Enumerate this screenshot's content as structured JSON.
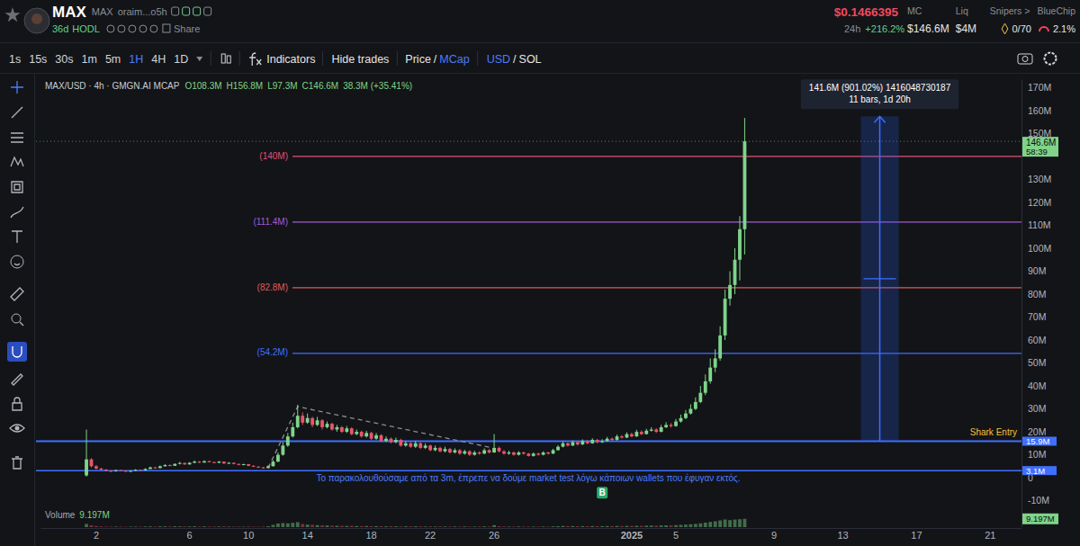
{
  "header": {
    "name": "MAX",
    "symbol": "MAX",
    "address": "oraim...o5h",
    "age": "36d",
    "tag": "HODL",
    "share": "Share",
    "price": "$0.1466395",
    "change_label": "24h",
    "change": "+216.2%",
    "mc_label": "MC",
    "mc": "$146.6M",
    "liq_label": "Liq",
    "liq": "$4M",
    "snipers_label": "Snipers >",
    "snipers": "0/70",
    "bluechip_label": "BlueChip",
    "bluechip": "2.1%"
  },
  "toolbar": {
    "intervals": [
      "1s",
      "15s",
      "30s",
      "1m",
      "5m",
      "1H",
      "4H",
      "1D"
    ],
    "active": "1H",
    "indicators": "Indicators",
    "hide_trades": "Hide trades",
    "price": "Price",
    "mcap": "MCap",
    "usd": "USD",
    "sol": "SOL",
    "separator": "/"
  },
  "chart_data": {
    "type": "candlestick",
    "title": "MAX/USD · 4h · GMGN.AI MCAP",
    "ohlc_legend": [
      "O108.3M",
      "H156.8M",
      "L97.3M",
      "C146.6M",
      "38.3M (+35.41%)"
    ],
    "up_color": "#7fd48a",
    "down_color": "#e9546b",
    "grid": false,
    "categories": [
      null,
      null,
      null,
      null,
      null,
      null,
      null,
      null,
      null,
      null,
      null,
      "2",
      null,
      null,
      null,
      null,
      null,
      null,
      null,
      null,
      null,
      null,
      null,
      null,
      null,
      null,
      null,
      null,
      null,
      null,
      "6",
      null,
      null,
      null,
      null,
      null,
      null,
      null,
      null,
      null,
      null,
      null,
      "10",
      null,
      null,
      null,
      null,
      null,
      null,
      null,
      null,
      null,
      null,
      null,
      "14",
      null,
      null,
      null,
      null,
      null,
      null,
      null,
      null,
      null,
      null,
      null,
      null,
      "18",
      null,
      null,
      null,
      null,
      null,
      null,
      null,
      null,
      null,
      null,
      null,
      "22",
      null,
      null,
      null,
      null,
      null,
      null,
      null,
      null,
      null,
      null,
      null,
      null,
      "26",
      null,
      null,
      null,
      null,
      null,
      null,
      null,
      null,
      null,
      null,
      null,
      null,
      null,
      null,
      null,
      null,
      null,
      null,
      null,
      null,
      null,
      null,
      null,
      null,
      null,
      null,
      null,
      "2025",
      null,
      null,
      null,
      null,
      null,
      null,
      null,
      null,
      "5",
      null,
      null,
      null,
      null,
      null,
      null,
      null,
      null,
      null,
      null,
      null,
      null,
      null,
      null,
      null,
      null,
      null,
      null,
      null,
      "9",
      null,
      null,
      null,
      null,
      null,
      null,
      null,
      null,
      null,
      null,
      null,
      null,
      null,
      "13",
      null,
      null,
      null,
      null,
      null,
      null,
      null,
      null,
      null,
      null,
      null,
      null,
      null,
      null,
      "17",
      null,
      null,
      null,
      null,
      null,
      null,
      null,
      null,
      null,
      null,
      null,
      null,
      null,
      null,
      "21",
      null,
      null,
      null,
      null,
      null,
      null
    ],
    "open": [
      null,
      null,
      null,
      null,
      null,
      null,
      null,
      null,
      null,
      1,
      8,
      5,
      4,
      3.5,
      3,
      2.8,
      3.2,
      3,
      2.7,
      3,
      3.4,
      3.2,
      3.8,
      4.5,
      4.2,
      5,
      5.5,
      5.2,
      6,
      6.4,
      5.8,
      6.5,
      7,
      6.6,
      7.2,
      6.8,
      6.5,
      7,
      6.2,
      6.5,
      6,
      5.6,
      5.9,
      5.2,
      4.8,
      4.5,
      4.2,
      5,
      7,
      10,
      14,
      18,
      22,
      27,
      24,
      26,
      23,
      25,
      22,
      23.5,
      21,
      22,
      20,
      21.5,
      19,
      20,
      18,
      19.5,
      17,
      18.5,
      16,
      17,
      15.5,
      16.5,
      14,
      15,
      13.5,
      15,
      13,
      14,
      12,
      13,
      11.5,
      12.5,
      11,
      12,
      10.5,
      11.5,
      10,
      11,
      10.5,
      12,
      11,
      13,
      11.5,
      10.5,
      11,
      10,
      11,
      10.5,
      9.5,
      10.5,
      10,
      11,
      10.5,
      12,
      13.5,
      15,
      14,
      15.5,
      14.5,
      16,
      15,
      16.5,
      15.5,
      16,
      17,
      16.5,
      18,
      17.5,
      19,
      18,
      20,
      19,
      20.5,
      21,
      20,
      22,
      23,
      22.5,
      24.5,
      26,
      28,
      30,
      33,
      37,
      42,
      48,
      52,
      62,
      78,
      84,
      95,
      108.3,
      null,
      null,
      null,
      null,
      null,
      null,
      null,
      null,
      null,
      null,
      null,
      null,
      null,
      null,
      null,
      null,
      null,
      null,
      null,
      null,
      null,
      null,
      null,
      null,
      null,
      null,
      null,
      null,
      null,
      null,
      null,
      null,
      null,
      null,
      null,
      null,
      null,
      null,
      null,
      null,
      null,
      null,
      null,
      null,
      null,
      null,
      null,
      null,
      null,
      null,
      null,
      null,
      null,
      null,
      null,
      null
    ],
    "high": [
      null,
      null,
      null,
      null,
      null,
      null,
      null,
      null,
      null,
      21,
      8.5,
      5.5,
      4.3,
      3.8,
      3.3,
      3.6,
      3.5,
      3.2,
      3.3,
      3.7,
      3.6,
      4.1,
      4.8,
      4.7,
      5.3,
      5.9,
      5.8,
      6.3,
      6.9,
      6.6,
      6.8,
      7.5,
      7.2,
      7.6,
      7.4,
      7,
      7.3,
      7.1,
      6.8,
      6.7,
      6.2,
      6.1,
      6,
      5.4,
      5,
      4.7,
      5.4,
      7.6,
      11,
      15.5,
      19.5,
      24,
      31.8,
      28.5,
      28,
      26.5,
      26.5,
      25.5,
      24.5,
      24,
      23,
      22.5,
      22.5,
      22,
      21,
      20.5,
      20.5,
      20,
      19.5,
      19,
      18,
      17.5,
      17.5,
      17,
      16,
      15.5,
      16,
      15.5,
      15,
      14.5,
      14,
      13.5,
      13.5,
      13,
      12.8,
      12.5,
      12.2,
      12,
      11.8,
      11.5,
      12.8,
      12.5,
      19,
      13.5,
      12,
      11.8,
      11.5,
      11.6,
      11.4,
      10.8,
      11,
      10.9,
      11.5,
      11.3,
      12.6,
      14.2,
      15.8,
      15.4,
      16.2,
      15.9,
      16.7,
      16.4,
      17.2,
      16.9,
      16.8,
      17.8,
      17.5,
      18.8,
      18.6,
      19.8,
      19.6,
      20.9,
      20.6,
      21.3,
      22,
      21.6,
      23,
      24.2,
      23.8,
      25.6,
      27.5,
      29.5,
      32,
      35,
      40,
      45,
      52,
      56,
      66,
      82,
      90,
      100,
      114,
      156.8,
      null,
      null,
      null,
      null,
      null,
      null,
      null,
      null,
      null,
      null,
      null,
      null,
      null,
      null,
      null,
      null,
      null,
      null,
      null,
      null,
      null,
      null,
      null,
      null,
      null,
      null,
      null,
      null,
      null,
      null,
      null,
      null,
      null,
      null,
      null,
      null,
      null,
      null,
      null,
      null,
      null,
      null,
      null,
      null,
      null,
      null,
      null,
      null,
      null,
      null,
      null,
      null,
      null,
      null,
      null,
      null
    ],
    "low": [
      null,
      null,
      null,
      null,
      null,
      null,
      null,
      null,
      null,
      0.5,
      4.5,
      3.6,
      3.1,
      2.7,
      2.5,
      2.6,
      2.8,
      2.5,
      2.5,
      2.9,
      3,
      3.1,
      3.7,
      4,
      4.1,
      4.8,
      5,
      5.1,
      5.8,
      5.6,
      5.7,
      6.3,
      6.4,
      6.5,
      6.6,
      6.3,
      6.3,
      6,
      6,
      5.8,
      5.4,
      5.4,
      5,
      4.6,
      4.3,
      4,
      4.1,
      4.9,
      6.8,
      9.6,
      13.5,
      17.5,
      21.5,
      23,
      23.5,
      22,
      22.5,
      21,
      21.5,
      20.5,
      20,
      19.5,
      19.5,
      18.5,
      18.5,
      17.5,
      17.5,
      16.5,
      16.5,
      15.5,
      15.5,
      15,
      15,
      13.5,
      13.5,
      13,
      13,
      12.5,
      12.5,
      11.5,
      11.5,
      11,
      11,
      10.5,
      10.5,
      10,
      10,
      9.5,
      9.6,
      10,
      10.2,
      10.5,
      10.8,
      11,
      10,
      10,
      9.6,
      9.7,
      10,
      9.2,
      9.2,
      9.6,
      9.7,
      10.1,
      10.3,
      11.8,
      13.2,
      13.6,
      13.8,
      14,
      14.2,
      14.6,
      14.8,
      15,
      15.1,
      15.7,
      16,
      16.2,
      17,
      17.2,
      17.6,
      17.8,
      18.6,
      18.8,
      20.1,
      19.5,
      19.8,
      21.6,
      21.9,
      22.2,
      24,
      25.5,
      27.5,
      29.5,
      32.5,
      36,
      41,
      46,
      51,
      60,
      75,
      80,
      86,
      97.3,
      null,
      null,
      null,
      null,
      null,
      null,
      null,
      null,
      null,
      null,
      null,
      null,
      null,
      null,
      null,
      null,
      null,
      null,
      null,
      null,
      null,
      null,
      null,
      null,
      null,
      null,
      null,
      null,
      null,
      null,
      null,
      null,
      null,
      null,
      null,
      null,
      null,
      null,
      null,
      null,
      null,
      null,
      null,
      null,
      null,
      null,
      null,
      null,
      null,
      null,
      null,
      null,
      null,
      null,
      null,
      null
    ],
    "close": [
      null,
      null,
      null,
      null,
      null,
      null,
      null,
      null,
      null,
      8,
      5,
      4,
      3.5,
      3,
      2.8,
      3.2,
      3,
      2.7,
      3,
      3.4,
      3.2,
      3.8,
      4.5,
      4.2,
      5,
      5.5,
      5.2,
      6,
      6.4,
      5.8,
      6.5,
      7,
      6.6,
      7.2,
      6.8,
      6.5,
      7,
      6.2,
      6.5,
      6,
      5.6,
      5.9,
      5.2,
      4.8,
      4.5,
      4.2,
      5,
      7,
      10,
      14,
      18,
      22,
      27,
      24,
      26,
      23,
      25,
      22,
      23.5,
      21,
      22,
      20,
      21.5,
      19,
      20,
      18,
      19.5,
      17,
      18.5,
      16,
      17,
      15.5,
      16.5,
      14,
      15,
      13.5,
      15,
      13,
      14,
      12,
      13,
      11.5,
      12.5,
      11,
      12,
      10.5,
      11.5,
      10,
      11,
      10.5,
      12,
      11,
      13,
      11.5,
      10.5,
      11,
      10,
      11,
      10.5,
      9.5,
      10.5,
      10,
      11,
      10.5,
      12,
      13.5,
      15,
      14,
      15.5,
      14.5,
      16,
      15,
      16.5,
      15.5,
      16,
      17,
      16.5,
      18,
      17.5,
      19,
      18,
      20,
      19,
      20.5,
      21,
      20,
      22,
      23,
      22.5,
      24.5,
      26,
      28,
      30,
      33,
      37,
      42,
      48,
      52,
      62,
      78,
      84,
      95,
      108.3,
      146.6,
      null,
      null,
      null,
      null,
      null,
      null,
      null,
      null,
      null,
      null,
      null,
      null,
      null,
      null,
      null,
      null,
      null,
      null,
      null,
      null,
      null,
      null,
      null,
      null,
      null,
      null,
      null,
      null,
      null,
      null,
      null,
      null,
      null,
      null,
      null,
      null,
      null,
      null,
      null,
      null,
      null,
      null,
      null,
      null,
      null,
      null,
      null,
      null,
      null,
      null,
      null,
      null,
      null,
      null,
      null,
      null
    ],
    "series": [
      {
        "name": "Volume",
        "type": "bar",
        "axis": "y2",
        "values": [
          null,
          null,
          null,
          null,
          null,
          null,
          null,
          null,
          null,
          3.5,
          2,
          1.2,
          0.8,
          0.6,
          0.5,
          0.6,
          0.5,
          0.4,
          0.5,
          0.6,
          0.5,
          0.7,
          0.8,
          0.6,
          0.9,
          0.8,
          0.7,
          0.9,
          0.8,
          0.7,
          0.8,
          0.9,
          0.7,
          0.8,
          0.7,
          0.6,
          0.7,
          0.8,
          0.6,
          0.6,
          0.6,
          0.5,
          0.7,
          0.6,
          0.5,
          0.6,
          1,
          2.5,
          4,
          4.5,
          4.2,
          4.8,
          5.5,
          3.5,
          2.8,
          2.5,
          2.2,
          2,
          1.8,
          1.6,
          1.5,
          1.4,
          1.3,
          1.4,
          1.2,
          1.1,
          1.2,
          1,
          1.1,
          1,
          0.9,
          1,
          0.9,
          0.8,
          0.9,
          0.8,
          0.9,
          0.8,
          0.7,
          0.8,
          0.7,
          0.8,
          0.7,
          0.6,
          0.7,
          0.6,
          0.7,
          0.6,
          0.6,
          0.7,
          0.8,
          0.7,
          2.2,
          1,
          0.7,
          0.6,
          0.6,
          0.7,
          0.6,
          0.6,
          0.6,
          0.6,
          0.7,
          0.6,
          0.8,
          1,
          1.3,
          1.1,
          1.2,
          1,
          1.1,
          1,
          1.2,
          1,
          1.1,
          1.2,
          1.1,
          1.3,
          1.2,
          1.4,
          1.3,
          1.5,
          1.4,
          1.6,
          1.7,
          1.5,
          1.8,
          2,
          1.9,
          2.2,
          2.5,
          2.8,
          3.2,
          3.6,
          4.2,
          5,
          5.8,
          6.5,
          7.5,
          8.5,
          7.8,
          8.4,
          8.8,
          9.197,
          null,
          null,
          null,
          null,
          null,
          null,
          null,
          null,
          null,
          null,
          null,
          null,
          null,
          null,
          null,
          null,
          null,
          null,
          null,
          null,
          null,
          null,
          null,
          null,
          null,
          null,
          null,
          null,
          null,
          null,
          null,
          null,
          null,
          null,
          null,
          null,
          null,
          null,
          null,
          null,
          null,
          null,
          null,
          null,
          null,
          null,
          null,
          null,
          null,
          null,
          null,
          null,
          null,
          null,
          null,
          null
        ]
      }
    ],
    "ylim": [
      -13.3,
      173.7
    ],
    "yticks": [
      {
        "value": -10,
        "label": "-10M"
      },
      0,
      {
        "value": 10,
        "label": "10M"
      },
      {
        "value": 20,
        "label": "20M"
      },
      {
        "value": 30,
        "label": "30M"
      },
      {
        "value": 40,
        "label": "40M"
      },
      {
        "value": 50,
        "label": "50M"
      },
      {
        "value": 60,
        "label": "60M"
      },
      {
        "value": 70,
        "label": "70M"
      },
      {
        "value": 80,
        "label": "80M"
      },
      {
        "value": 90,
        "label": "90M"
      },
      {
        "value": 100,
        "label": "100M"
      },
      {
        "value": 110,
        "label": "110M"
      },
      {
        "value": 120,
        "label": "120M"
      },
      {
        "value": 130,
        "label": "130M"
      },
      {
        "value": 150,
        "label": "150M"
      },
      {
        "value": 160,
        "label": "160M"
      },
      {
        "value": 170,
        "label": "170M"
      }
    ],
    "y2lim": [
      0,
      28
    ],
    "y2ticks": [
      {
        "value": 9.197,
        "label": "9.197M"
      }
    ],
    "levels": [
      {
        "value": 140,
        "label": "(140M)",
        "color": "#e0507a"
      },
      {
        "value": 111.4,
        "label": "(111.4M)",
        "color": "#a35ad6"
      },
      {
        "value": 82.8,
        "label": "(82.8M)",
        "color": "#e05a5a"
      },
      {
        "value": 54.2,
        "label": "(54.2M)",
        "color": "#3f6fff"
      }
    ],
    "zones": [
      {
        "value": 15.9,
        "label": "15.9M",
        "color": "#3f6fff"
      },
      {
        "value": 3.1,
        "label": "3.1M",
        "color": "#3f6fff"
      }
    ],
    "annotations": [
      {
        "text": "Shark Entry",
        "value": 15.9,
        "color": "#f5c242"
      },
      {
        "text": "Το παρακολουθούσαμε από τα 3m, έπρεπε να δούμε market test λόγω κάποιων wallets που έφυγαν εκτός.",
        "value": 3.1,
        "color": "#4d7cff"
      }
    ],
    "last_price": {
      "value": 146.6,
      "label": "146.6M",
      "countdown": "58:39"
    },
    "markers": [
      {
        "index": 114,
        "label": "B"
      }
    ],
    "trendline": {
      "index": [
        46,
        52,
        91
      ],
      "values": [
        4.3,
        31,
        13.3
      ]
    },
    "measure": {
      "from": 15.9,
      "to": 157.5,
      "start": 167,
      "end": 174,
      "label": "141.6M (901.02%) 1416048730187",
      "bars": "11 bars, 1d 20h"
    }
  }
}
